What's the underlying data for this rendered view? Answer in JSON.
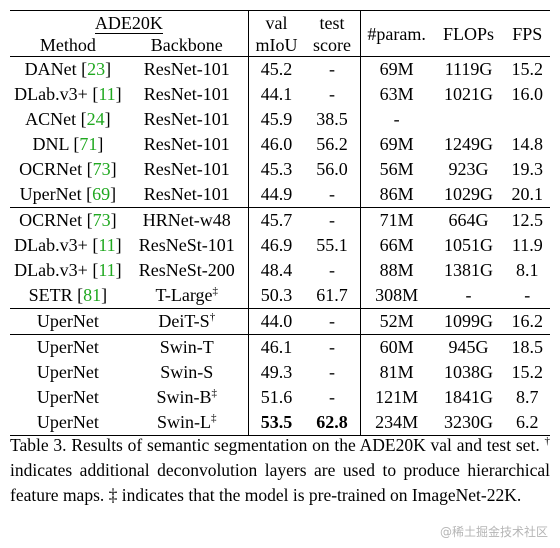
{
  "table": {
    "header": {
      "dataset": "ADE20K",
      "method": "Method",
      "backbone": "Backbone",
      "val_line1": "val",
      "val_line2": "mIoU",
      "test_line1": "test",
      "test_line2": "score",
      "param": "#param.",
      "flops": "FLOPs",
      "fps": "FPS"
    },
    "groups": [
      {
        "rows": [
          {
            "method": "DANet",
            "ref": "23",
            "backbone": "ResNet-101",
            "sup": "",
            "val": "45.2",
            "test": "-",
            "param": "69M",
            "flops": "1119G",
            "fps": "15.2"
          },
          {
            "method": "DLab.v3+",
            "ref": "11",
            "backbone": "ResNet-101",
            "sup": "",
            "val": "44.1",
            "test": "-",
            "param": "63M",
            "flops": "1021G",
            "fps": "16.0"
          },
          {
            "method": "ACNet",
            "ref": "24",
            "backbone": "ResNet-101",
            "sup": "",
            "val": "45.9",
            "test": "38.5",
            "param": "-",
            "flops": "",
            "fps": ""
          },
          {
            "method": "DNL",
            "ref": "71",
            "backbone": "ResNet-101",
            "sup": "",
            "val": "46.0",
            "test": "56.2",
            "param": "69M",
            "flops": "1249G",
            "fps": "14.8"
          },
          {
            "method": "OCRNet",
            "ref": "73",
            "backbone": "ResNet-101",
            "sup": "",
            "val": "45.3",
            "test": "56.0",
            "param": "56M",
            "flops": "923G",
            "fps": "19.3"
          },
          {
            "method": "UperNet",
            "ref": "69",
            "backbone": "ResNet-101",
            "sup": "",
            "val": "44.9",
            "test": "-",
            "param": "86M",
            "flops": "1029G",
            "fps": "20.1"
          }
        ]
      },
      {
        "rows": [
          {
            "method": "OCRNet",
            "ref": "73",
            "backbone": "HRNet-w48",
            "sup": "",
            "val": "45.7",
            "test": "-",
            "param": "71M",
            "flops": "664G",
            "fps": "12.5"
          },
          {
            "method": "DLab.v3+",
            "ref": "11",
            "backbone": "ResNeSt-101",
            "sup": "",
            "val": "46.9",
            "test": "55.1",
            "param": "66M",
            "flops": "1051G",
            "fps": "11.9"
          },
          {
            "method": "DLab.v3+",
            "ref": "11",
            "backbone": "ResNeSt-200",
            "sup": "",
            "val": "48.4",
            "test": "-",
            "param": "88M",
            "flops": "1381G",
            "fps": "8.1"
          },
          {
            "method": "SETR",
            "ref": "81",
            "backbone": "T-Large",
            "sup": "‡",
            "val": "50.3",
            "test": "61.7",
            "param": "308M",
            "flops": "-",
            "fps": "-"
          }
        ]
      },
      {
        "rows": [
          {
            "method": "UperNet",
            "ref": "",
            "backbone": "DeiT-S",
            "sup": "†",
            "val": "44.0",
            "test": "-",
            "param": "52M",
            "flops": "1099G",
            "fps": "16.2"
          }
        ]
      },
      {
        "rows": [
          {
            "method": "UperNet",
            "ref": "",
            "backbone": "Swin-T",
            "sup": "",
            "val": "46.1",
            "test": "-",
            "param": "60M",
            "flops": "945G",
            "fps": "18.5"
          },
          {
            "method": "UperNet",
            "ref": "",
            "backbone": "Swin-S",
            "sup": "",
            "val": "49.3",
            "test": "-",
            "param": "81M",
            "flops": "1038G",
            "fps": "15.2"
          },
          {
            "method": "UperNet",
            "ref": "",
            "backbone": "Swin-B",
            "sup": "‡",
            "val": "51.6",
            "test": "-",
            "param": "121M",
            "flops": "1841G",
            "fps": "8.7"
          },
          {
            "method": "UperNet",
            "ref": "",
            "backbone": "Swin-L",
            "sup": "‡",
            "val": "53.5",
            "test": "62.8",
            "param": "234M",
            "flops": "3230G",
            "fps": "6.2",
            "bold_val": true,
            "bold_test": true
          }
        ]
      }
    ]
  },
  "caption": {
    "part1": "Table 3. Results of semantic segmentation on the ADE20K val and test set. ",
    "dagger": "†",
    "part2": " indicates additional deconvolution layers are used to produce hierarchical feature maps. ",
    "ddagger": "‡",
    "part3": " indicates that the model is pre-trained on ImageNet-22K."
  },
  "watermark": "@稀土掘金技术社区",
  "colors": {
    "reference_link": "#1fa81f",
    "watermark": "#b5b5b5"
  }
}
